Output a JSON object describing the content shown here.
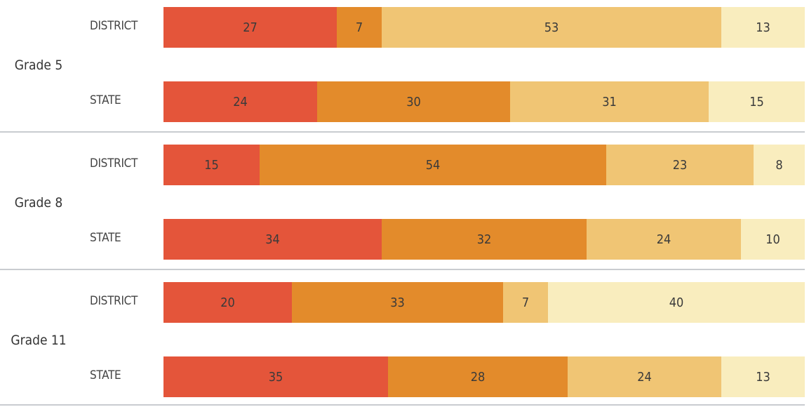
{
  "chart_data": {
    "type": "bar",
    "orientation": "horizontal",
    "stacked": true,
    "categories_order": [
      "DISTRICT",
      "STATE"
    ],
    "segment_colors": [
      "#e4553a",
      "#e38b2b",
      "#f0c574",
      "#f9edbe"
    ],
    "groups": [
      {
        "grade": "Grade 5",
        "bars": [
          {
            "label": "DISTRICT",
            "values": [
              27,
              7,
              53,
              13
            ]
          },
          {
            "label": "STATE",
            "values": [
              24,
              30,
              31,
              15
            ]
          }
        ]
      },
      {
        "grade": "Grade 8",
        "bars": [
          {
            "label": "DISTRICT",
            "values": [
              15,
              54,
              23,
              8
            ]
          },
          {
            "label": "STATE",
            "values": [
              34,
              32,
              24,
              10
            ]
          }
        ]
      },
      {
        "grade": "Grade 11",
        "bars": [
          {
            "label": "DISTRICT",
            "values": [
              20,
              33,
              7,
              40
            ]
          },
          {
            "label": "STATE",
            "values": [
              35,
              28,
              24,
              13
            ]
          }
        ]
      }
    ]
  }
}
